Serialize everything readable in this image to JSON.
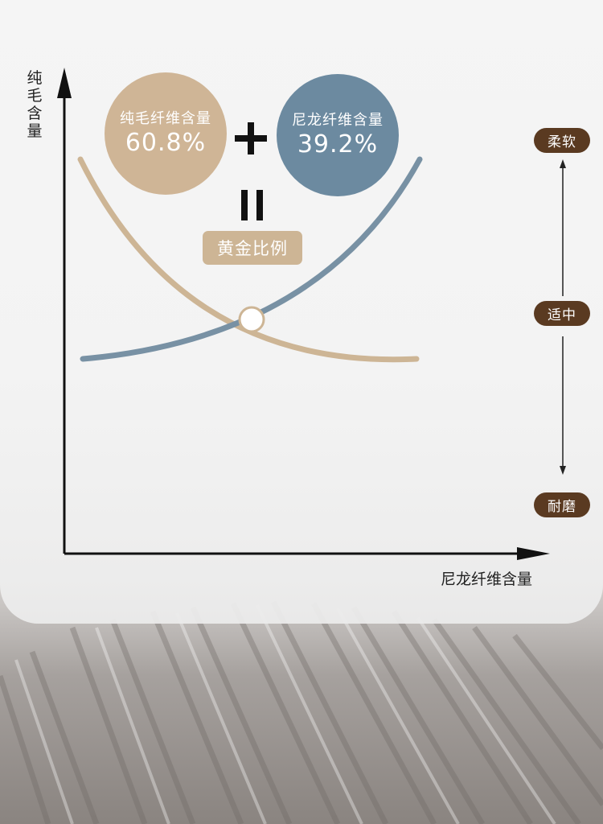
{
  "axes": {
    "y_label": "纯毛含量",
    "x_label": "尼龙纤维含量"
  },
  "wool": {
    "label": "纯毛纤维含量",
    "value": "60.8%",
    "color": "#cfb596"
  },
  "nylon": {
    "label": "尼龙纤维含量",
    "value": "39.2%",
    "color": "#6c8aa0"
  },
  "operator_plus": "+",
  "operator_equals": "=",
  "result_label": "黄金比例",
  "scale": {
    "top": "柔软",
    "middle": "适中",
    "bottom": "耐磨",
    "tag_color": "#5a3a21"
  }
}
